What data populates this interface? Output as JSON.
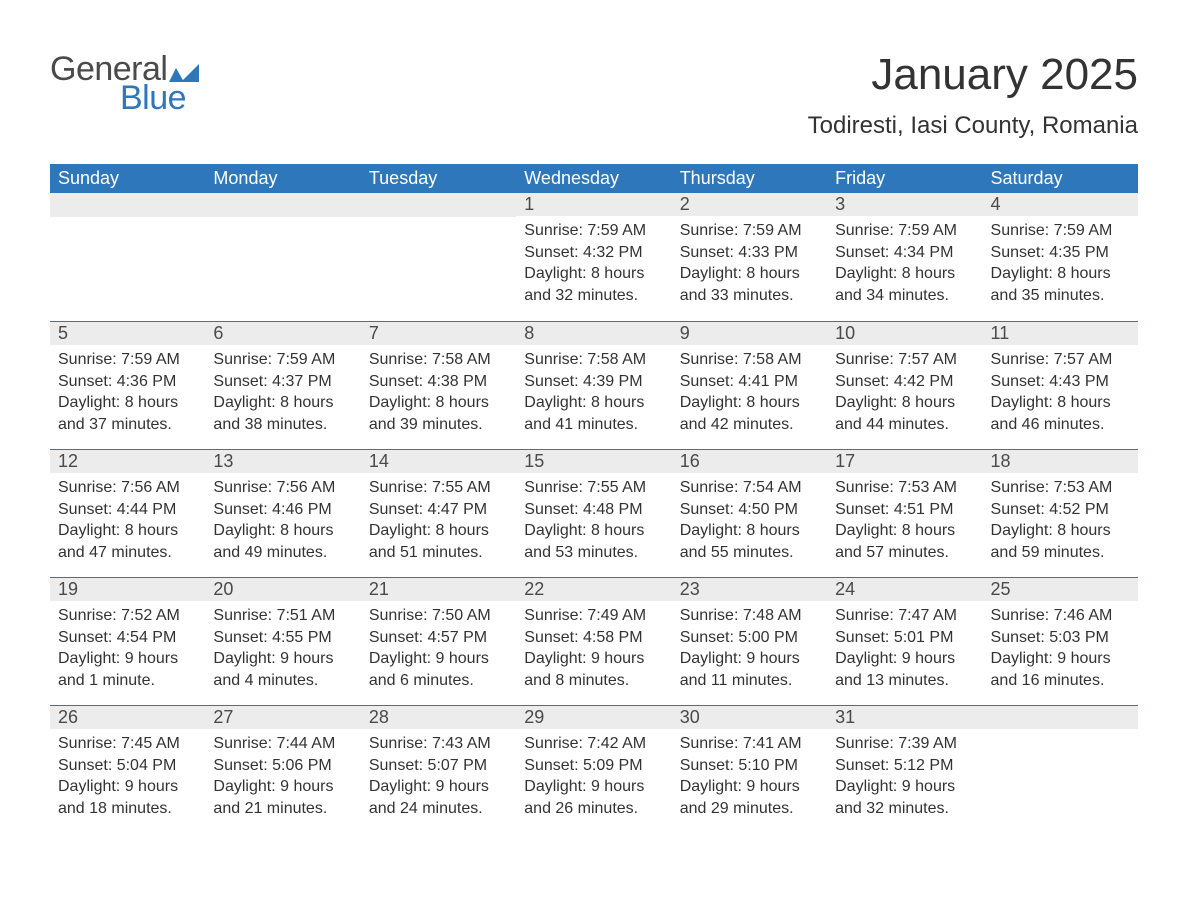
{
  "logo": {
    "text_general": "General",
    "text_blue": "Blue",
    "flag_color": "#2f77bb"
  },
  "title": "January 2025",
  "location": "Todiresti, Iasi County, Romania",
  "colors": {
    "header_bg": "#2f77bb",
    "header_text": "#ffffff",
    "daynum_bg": "#ececec",
    "border": "#2f77bb",
    "body_text": "#333333"
  },
  "fonts": {
    "title_size_pt": 33,
    "location_size_pt": 18,
    "header_size_pt": 14,
    "body_size_pt": 12
  },
  "weekdays": [
    "Sunday",
    "Monday",
    "Tuesday",
    "Wednesday",
    "Thursday",
    "Friday",
    "Saturday"
  ],
  "weeks": [
    [
      null,
      null,
      null,
      {
        "n": "1",
        "sunrise": "7:59 AM",
        "sunset": "4:32 PM",
        "daylight": "8 hours and 32 minutes."
      },
      {
        "n": "2",
        "sunrise": "7:59 AM",
        "sunset": "4:33 PM",
        "daylight": "8 hours and 33 minutes."
      },
      {
        "n": "3",
        "sunrise": "7:59 AM",
        "sunset": "4:34 PM",
        "daylight": "8 hours and 34 minutes."
      },
      {
        "n": "4",
        "sunrise": "7:59 AM",
        "sunset": "4:35 PM",
        "daylight": "8 hours and 35 minutes."
      }
    ],
    [
      {
        "n": "5",
        "sunrise": "7:59 AM",
        "sunset": "4:36 PM",
        "daylight": "8 hours and 37 minutes."
      },
      {
        "n": "6",
        "sunrise": "7:59 AM",
        "sunset": "4:37 PM",
        "daylight": "8 hours and 38 minutes."
      },
      {
        "n": "7",
        "sunrise": "7:58 AM",
        "sunset": "4:38 PM",
        "daylight": "8 hours and 39 minutes."
      },
      {
        "n": "8",
        "sunrise": "7:58 AM",
        "sunset": "4:39 PM",
        "daylight": "8 hours and 41 minutes."
      },
      {
        "n": "9",
        "sunrise": "7:58 AM",
        "sunset": "4:41 PM",
        "daylight": "8 hours and 42 minutes."
      },
      {
        "n": "10",
        "sunrise": "7:57 AM",
        "sunset": "4:42 PM",
        "daylight": "8 hours and 44 minutes."
      },
      {
        "n": "11",
        "sunrise": "7:57 AM",
        "sunset": "4:43 PM",
        "daylight": "8 hours and 46 minutes."
      }
    ],
    [
      {
        "n": "12",
        "sunrise": "7:56 AM",
        "sunset": "4:44 PM",
        "daylight": "8 hours and 47 minutes."
      },
      {
        "n": "13",
        "sunrise": "7:56 AM",
        "sunset": "4:46 PM",
        "daylight": "8 hours and 49 minutes."
      },
      {
        "n": "14",
        "sunrise": "7:55 AM",
        "sunset": "4:47 PM",
        "daylight": "8 hours and 51 minutes."
      },
      {
        "n": "15",
        "sunrise": "7:55 AM",
        "sunset": "4:48 PM",
        "daylight": "8 hours and 53 minutes."
      },
      {
        "n": "16",
        "sunrise": "7:54 AM",
        "sunset": "4:50 PM",
        "daylight": "8 hours and 55 minutes."
      },
      {
        "n": "17",
        "sunrise": "7:53 AM",
        "sunset": "4:51 PM",
        "daylight": "8 hours and 57 minutes."
      },
      {
        "n": "18",
        "sunrise": "7:53 AM",
        "sunset": "4:52 PM",
        "daylight": "8 hours and 59 minutes."
      }
    ],
    [
      {
        "n": "19",
        "sunrise": "7:52 AM",
        "sunset": "4:54 PM",
        "daylight": "9 hours and 1 minute."
      },
      {
        "n": "20",
        "sunrise": "7:51 AM",
        "sunset": "4:55 PM",
        "daylight": "9 hours and 4 minutes."
      },
      {
        "n": "21",
        "sunrise": "7:50 AM",
        "sunset": "4:57 PM",
        "daylight": "9 hours and 6 minutes."
      },
      {
        "n": "22",
        "sunrise": "7:49 AM",
        "sunset": "4:58 PM",
        "daylight": "9 hours and 8 minutes."
      },
      {
        "n": "23",
        "sunrise": "7:48 AM",
        "sunset": "5:00 PM",
        "daylight": "9 hours and 11 minutes."
      },
      {
        "n": "24",
        "sunrise": "7:47 AM",
        "sunset": "5:01 PM",
        "daylight": "9 hours and 13 minutes."
      },
      {
        "n": "25",
        "sunrise": "7:46 AM",
        "sunset": "5:03 PM",
        "daylight": "9 hours and 16 minutes."
      }
    ],
    [
      {
        "n": "26",
        "sunrise": "7:45 AM",
        "sunset": "5:04 PM",
        "daylight": "9 hours and 18 minutes."
      },
      {
        "n": "27",
        "sunrise": "7:44 AM",
        "sunset": "5:06 PM",
        "daylight": "9 hours and 21 minutes."
      },
      {
        "n": "28",
        "sunrise": "7:43 AM",
        "sunset": "5:07 PM",
        "daylight": "9 hours and 24 minutes."
      },
      {
        "n": "29",
        "sunrise": "7:42 AM",
        "sunset": "5:09 PM",
        "daylight": "9 hours and 26 minutes."
      },
      {
        "n": "30",
        "sunrise": "7:41 AM",
        "sunset": "5:10 PM",
        "daylight": "9 hours and 29 minutes."
      },
      {
        "n": "31",
        "sunrise": "7:39 AM",
        "sunset": "5:12 PM",
        "daylight": "9 hours and 32 minutes."
      },
      null
    ]
  ],
  "labels": {
    "sunrise": "Sunrise:",
    "sunset": "Sunset:",
    "daylight": "Daylight:"
  }
}
